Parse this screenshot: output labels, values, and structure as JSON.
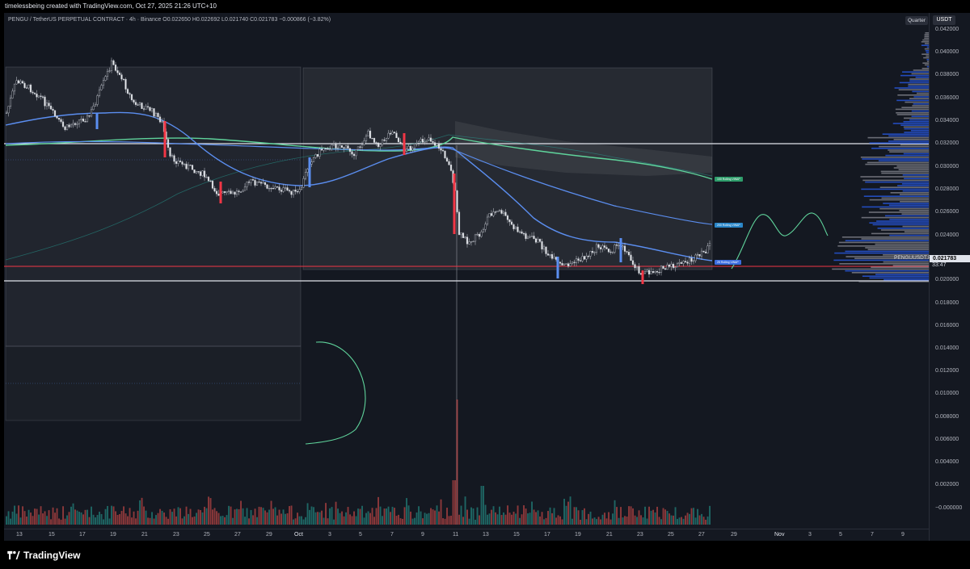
{
  "header": {
    "credit": "timelessbeing created with TradingView.com, Oct 27, 2025 21:26 UTC+10",
    "symbol_line": "PENGU / TetherUS PERPETUAL CONTRACT · 4h · Binance  O0.022650 H0.022692 L0.021740 C0.021783 −0.000866 (−3.82%)"
  },
  "toolbar": {
    "quarter_label": "Quarter",
    "currency_label": "USDT"
  },
  "price_axis": {
    "ticks": [
      "0.042000",
      "0.040000",
      "0.038000",
      "0.036000",
      "0.034000",
      "0.032000",
      "0.030000",
      "0.028000",
      "0.026000",
      "0.024000",
      "0.020000",
      "0.018000",
      "0.016000",
      "0.014000",
      "0.012000",
      "0.010000",
      "0.008000",
      "0.006000",
      "0.004000",
      "0.002000",
      "−0.000000"
    ],
    "current_price": "0.021783",
    "countdown": "33:47",
    "symbol_tag": "PENGUUSDT.P"
  },
  "time_axis": [
    "13",
    "15",
    "17",
    "19",
    "21",
    "23",
    "25",
    "27",
    "29",
    "Oct",
    "3",
    "5",
    "7",
    "9",
    "11",
    "13",
    "15",
    "17",
    "19",
    "21",
    "23",
    "25",
    "27",
    "29",
    "Nov",
    "3",
    "5",
    "7",
    "9"
  ],
  "ma_tags": [
    "100 Rolling VWAP",
    "200 Rolling VWAP",
    "25 Rolling VWAP"
  ],
  "footer": {
    "brand": "TradingView"
  },
  "colors": {
    "up": "#26a69a",
    "down": "#ef5350",
    "vwap_blue": "#5b8ef0",
    "vwap_green": "#5fd39b",
    "support": "#f23645"
  }
}
